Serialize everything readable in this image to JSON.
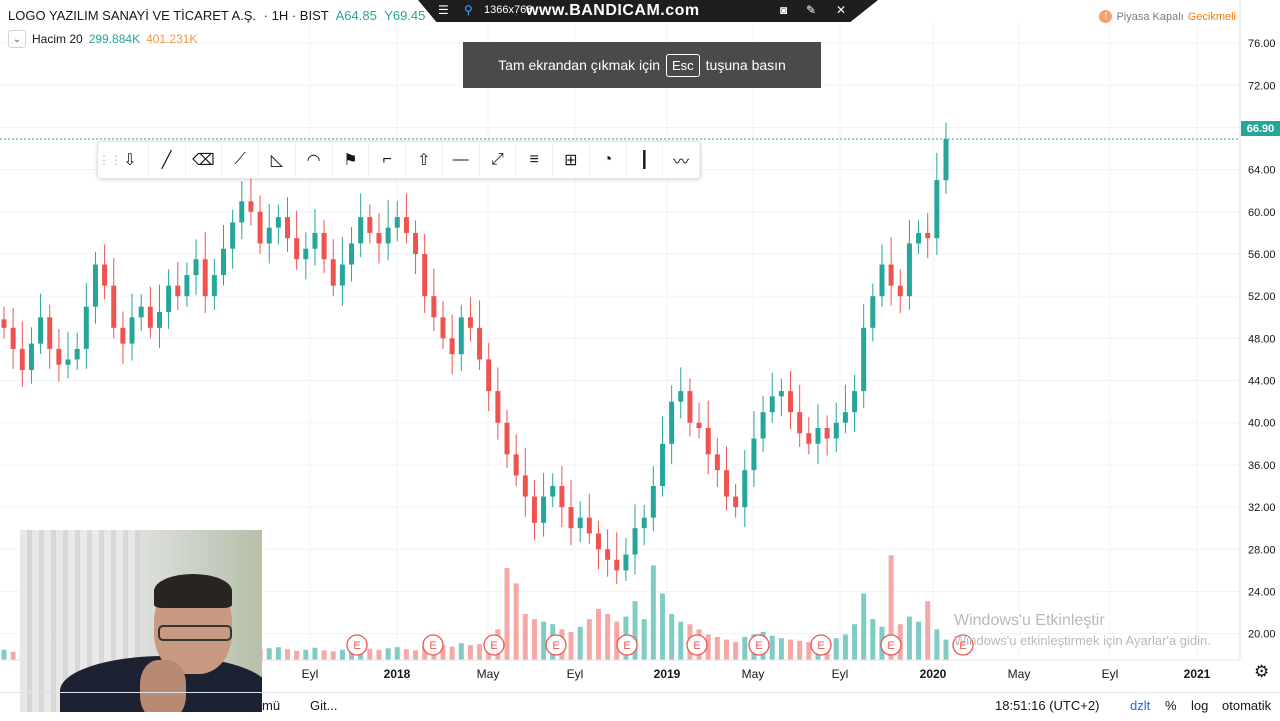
{
  "header": {
    "symbol_title": "LOGO YAZILIM SANAYİ VE TİCARET A.Ş.",
    "interval": "· 1H · BIST",
    "open_label": "A64.85",
    "high_label": "Y69.45",
    "volume_label": "Hacim 20",
    "volume_value": "299.884K",
    "volume_ma": "401.231K",
    "market_status": "Piyasa Kapalı",
    "delay_status": "Gecikmeli",
    "status_icon": "!"
  },
  "bandicam": {
    "resolution": "1366x768",
    "brand": "www.BANDICAM.com",
    "icons": [
      "menu-icon",
      "pin-icon",
      "camera-icon",
      "pencil-icon",
      "close-icon"
    ]
  },
  "toast": {
    "before": "Tam ekrandan çıkmak için",
    "key": "Esc",
    "after": "tuşuna basın"
  },
  "toolbar": {
    "tools": [
      "arrow-down-icon",
      "trend-line-icon",
      "eraser-icon",
      "path-icon",
      "triangle-icon",
      "curve-icon",
      "flag-icon",
      "callout-icon",
      "arrow-up-icon",
      "horizontal-line-icon",
      "ray-icon",
      "parallel-channel-icon",
      "measure-icon",
      "arc-icon",
      "vertical-line-icon",
      "brush-icon"
    ],
    "tool_glyphs": [
      "⇩",
      "╱",
      "⌫",
      "⟋",
      "◺",
      "◠",
      "⚑",
      "⌐",
      "⇧",
      "—",
      "⤢",
      "≡",
      "⊞",
      "◔",
      "┃",
      "〰"
    ]
  },
  "current_price": "66.90",
  "watermark": {
    "line1": "Windows'u Etkinleştir",
    "line2": "Windows'u etkinleştirmek için Ayarlar'a gidin."
  },
  "bottom_bar": {
    "left_fragment": "mü",
    "goto": "Git...",
    "clock": "18:51:16 (UTC+2)",
    "adjust": "dzlt",
    "percent": "%",
    "log": "log",
    "auto": "otomatik"
  },
  "colors": {
    "up": "#26a69a",
    "down": "#ef5350",
    "vol_up": "#80cbc4",
    "vol_down": "#f4a9a7"
  },
  "chart_data": {
    "type": "candlestick",
    "title": "LOGO YAZILIM SANAYİ VE TİCARET A.Ş.",
    "xlabel": "",
    "ylabel": "",
    "ylim": [
      17.5,
      78.0
    ],
    "yticks": [
      "76.00",
      "72.00",
      "68.00",
      "64.00",
      "60.00",
      "56.00",
      "52.00",
      "48.00",
      "44.00",
      "40.00",
      "36.00",
      "32.00",
      "28.00",
      "24.00",
      "20.00"
    ],
    "xticks": [
      "Eyl",
      "2018",
      "May",
      "Eyl",
      "2019",
      "May",
      "Eyl",
      "2020",
      "May",
      "Eyl",
      "2021"
    ],
    "earnings_markers": [
      "E",
      "E",
      "E",
      "E",
      "E",
      "E",
      "E",
      "E",
      "E",
      "E"
    ],
    "last_price": 66.9,
    "grid": true,
    "close_path": [
      49.0,
      47.0,
      45.0,
      47.5,
      50.0,
      47.0,
      45.5,
      46.0,
      47.0,
      51.0,
      55.0,
      53.0,
      49.0,
      47.5,
      50.0,
      51.0,
      49.0,
      50.5,
      53.0,
      52.0,
      54.0,
      55.5,
      52.0,
      54.0,
      56.5,
      59.0,
      61.0,
      60.0,
      57.0,
      58.5,
      59.5,
      57.5,
      55.5,
      56.5,
      58.0,
      55.5,
      53.0,
      55.0,
      57.0,
      59.5,
      58.0,
      57.0,
      58.5,
      59.5,
      58.0,
      56.0,
      52.0,
      50.0,
      48.0,
      46.5,
      50.0,
      49.0,
      46.0,
      43.0,
      40.0,
      37.0,
      35.0,
      33.0,
      30.5,
      33.0,
      34.0,
      32.0,
      30.0,
      31.0,
      29.5,
      28.0,
      27.0,
      26.0,
      27.5,
      30.0,
      31.0,
      34.0,
      38.0,
      42.0,
      43.0,
      40.0,
      39.5,
      37.0,
      35.5,
      33.0,
      32.0,
      35.5,
      38.5,
      41.0,
      42.5,
      43.0,
      41.0,
      39.0,
      38.0,
      39.5,
      38.5,
      40.0,
      41.0,
      43.0,
      49.0,
      52.0,
      55.0,
      53.0,
      52.0,
      57.0,
      58.0,
      57.5,
      63.0,
      66.9
    ],
    "volume_range": [
      0,
      450
    ],
    "volume_values": [
      40,
      32,
      28,
      25,
      38,
      30,
      26,
      22,
      35,
      60,
      55,
      42,
      34,
      30,
      45,
      38,
      32,
      36,
      50,
      40,
      48,
      55,
      38,
      44,
      60,
      70,
      58,
      52,
      40,
      46,
      50,
      42,
      36,
      40,
      48,
      38,
      34,
      40,
      46,
      52,
      44,
      40,
      46,
      50,
      42,
      38,
      55,
      60,
      58,
      52,
      66,
      58,
      62,
      70,
      120,
      360,
      300,
      180,
      160,
      150,
      140,
      120,
      110,
      130,
      160,
      200,
      180,
      150,
      170,
      230,
      160,
      370,
      260,
      180,
      150,
      140,
      120,
      100,
      90,
      80,
      70,
      90,
      100,
      110,
      95,
      85,
      80,
      75,
      70,
      90,
      80,
      85,
      100,
      140,
      260,
      160,
      130,
      410,
      140,
      170,
      150,
      230,
      120,
      80
    ],
    "date_range": [
      "2017-05",
      "2020-03"
    ]
  }
}
